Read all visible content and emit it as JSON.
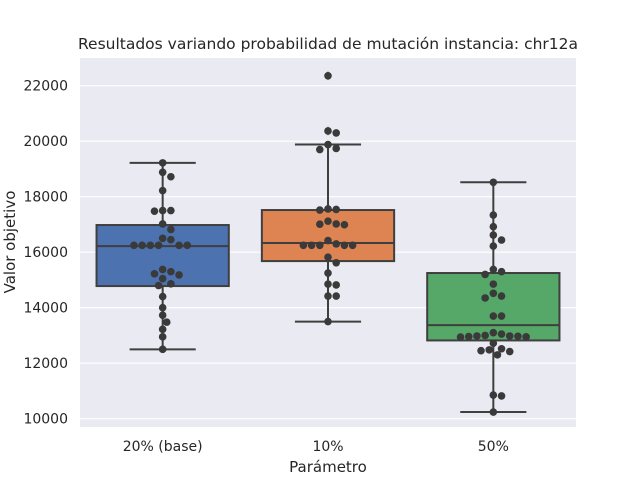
{
  "chart_data": {
    "type": "box",
    "title": "Resultados variando probabilidad de mutación instancia: chr12a",
    "xlabel": "Parámetro",
    "ylabel": "Valor objetivo",
    "categories": [
      "20% (base)",
      "10%",
      "50%"
    ],
    "ylim": [
      9700,
      23000
    ],
    "yticks": [
      10000,
      12000,
      14000,
      16000,
      18000,
      20000,
      22000
    ],
    "grid": true,
    "colors": {
      "20% (base)": "#4c72b0",
      "10%": "#dd8452",
      "50%": "#55a868",
      "background": "#eaeaf2",
      "points": "#3a3a3a",
      "lines": "#3f3f3f"
    },
    "boxes": [
      {
        "category": "20% (base)",
        "q1": 14780,
        "median": 16220,
        "q3": 16980,
        "whisker_low": 12500,
        "whisker_high": 19220,
        "outliers": []
      },
      {
        "category": "10%",
        "q1": 15680,
        "median": 16330,
        "q3": 17520,
        "whisker_low": 13500,
        "whisker_high": 19880,
        "outliers": [
          22360,
          20370
        ]
      },
      {
        "category": "50%",
        "q1": 12820,
        "median": 13370,
        "q3": 15250,
        "whisker_low": 10240,
        "whisker_high": 18520,
        "outliers": []
      }
    ],
    "points": [
      [
        19220,
        18880,
        18720,
        18220,
        17500,
        17500,
        17480,
        17020,
        16820,
        16500,
        16450,
        16250,
        16250,
        16250,
        16250,
        16250,
        16250,
        15380,
        15300,
        15220,
        15180,
        15050,
        14860,
        14800,
        14400,
        14000,
        13730,
        13480,
        13220,
        12950,
        12500
      ],
      [
        22360,
        20370,
        20300,
        19880,
        19740,
        19700,
        17560,
        17540,
        17520,
        17120,
        17020,
        17010,
        16990,
        16420,
        16300,
        16250,
        16250,
        16250,
        16250,
        16250,
        15820,
        15620,
        15250,
        14850,
        14820,
        14420,
        14420,
        13500
      ],
      [
        18520,
        17340,
        16920,
        16620,
        16440,
        16220,
        15380,
        15300,
        15200,
        14850,
        14520,
        14420,
        14350,
        13700,
        13700,
        13100,
        13050,
        13000,
        12980,
        12980,
        12970,
        12960,
        12950,
        12940,
        12720,
        12520,
        12480,
        12450,
        12420,
        12300,
        10850,
        10820,
        10240
      ]
    ]
  }
}
